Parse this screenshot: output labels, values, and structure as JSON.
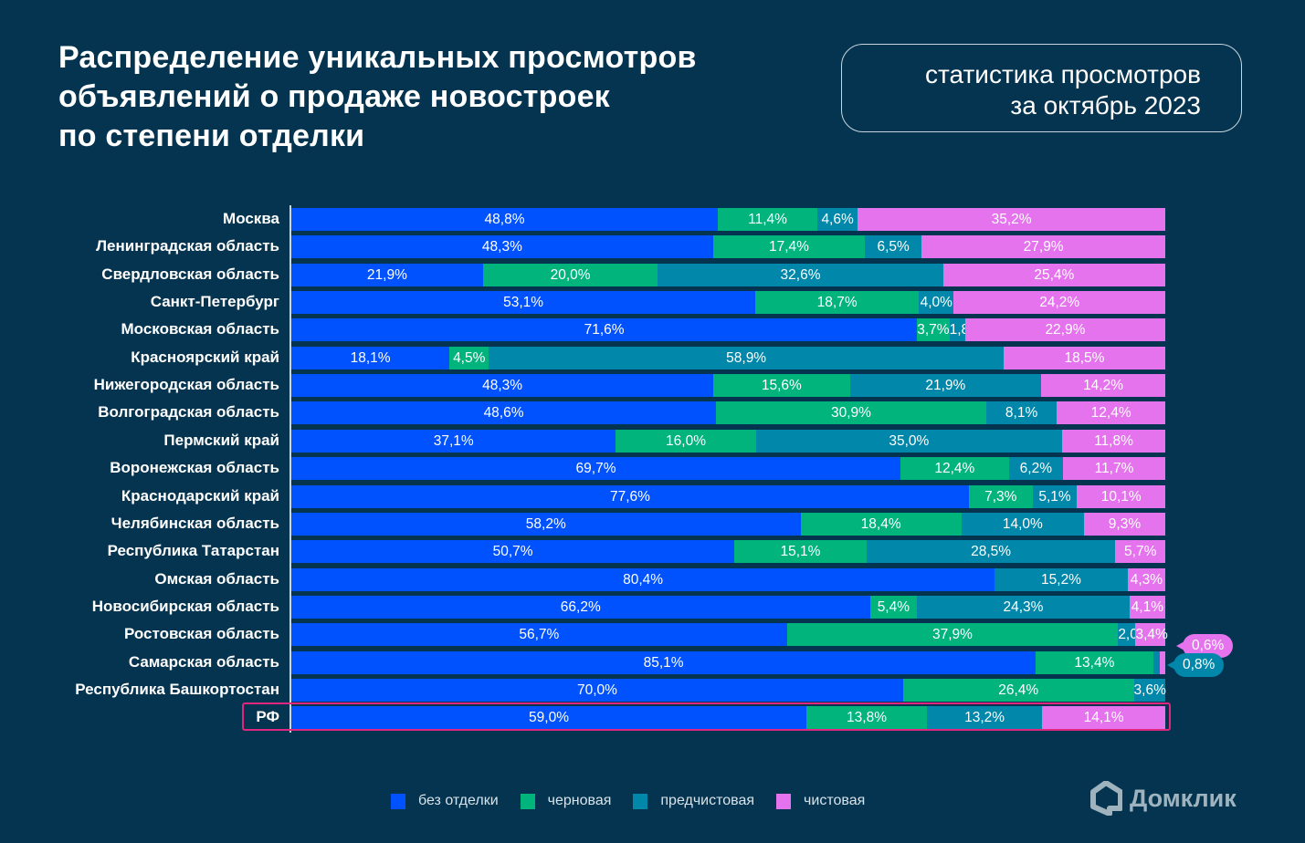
{
  "header": {
    "title": "Распределение уникальных просмотров\nобъявлений о продаже новостроек\nпо степени отделки",
    "period": "статистика просмотров\nза октябрь 2023"
  },
  "brand": {
    "name": "Домклик",
    "icon": "house-logo-icon"
  },
  "colors": {
    "background": "#04344f",
    "без отделки": "#0052fe",
    "черновая": "#00b47c",
    "предчистовая": "#0087a9",
    "чистовая": "#e573ed",
    "highlight": "#e0267f"
  },
  "chart_data": {
    "type": "bar",
    "orientation": "horizontal",
    "stacked": true,
    "normalized": true,
    "title": "Распределение уникальных просмотров объявлений о продаже новостроек по степени отделки",
    "subtitle": "статистика просмотров за октябрь 2023",
    "xlabel": "",
    "ylabel": "",
    "xlim": [
      0,
      100
    ],
    "unit": "%",
    "grid": false,
    "legend_position": "bottom",
    "categories": [
      "Москва",
      "Ленинградская область",
      "Свердловская область",
      "Санкт-Петербург",
      "Московская область",
      "Красноярский край",
      "Нижегородская область",
      "Волгоградская область",
      "Пермский край",
      "Воронежская область",
      "Краснодарский край",
      "Челябинская область",
      "Республика Татарстан",
      "Омская область",
      "Новосибирская область",
      "Ростовская область",
      "Самарская область",
      "Республика Башкортостан",
      "РФ"
    ],
    "highlighted_category": "РФ",
    "series": [
      {
        "name": "без отделки",
        "values": [
          48.8,
          48.3,
          21.9,
          53.1,
          71.6,
          18.1,
          48.3,
          48.6,
          37.1,
          69.7,
          77.6,
          58.2,
          50.7,
          80.4,
          66.2,
          56.7,
          85.1,
          70.0,
          59.0
        ]
      },
      {
        "name": "черновая",
        "values": [
          11.4,
          17.4,
          20.0,
          18.7,
          3.7,
          4.5,
          15.6,
          30.9,
          16.0,
          12.4,
          7.3,
          18.4,
          15.1,
          0,
          5.4,
          37.9,
          13.4,
          26.4,
          13.8
        ]
      },
      {
        "name": "предчистовая",
        "values": [
          4.6,
          6.5,
          32.6,
          4.0,
          1.8,
          58.9,
          21.9,
          8.1,
          35.0,
          6.2,
          5.1,
          14.0,
          28.5,
          15.2,
          24.3,
          2.0,
          0.8,
          3.6,
          13.2
        ]
      },
      {
        "name": "чистовая",
        "values": [
          35.2,
          27.9,
          25.4,
          24.2,
          22.9,
          18.5,
          14.2,
          12.4,
          11.8,
          11.7,
          10.1,
          9.3,
          5.7,
          4.3,
          4.1,
          3.4,
          0.6,
          0,
          14.1
        ]
      }
    ],
    "callouts": [
      {
        "category": "Самарская область",
        "series": "чистовая",
        "label": "0,6%"
      },
      {
        "category": "Самарская область",
        "series": "предчистовая",
        "label": "0,8%"
      }
    ]
  },
  "legend": [
    {
      "label": "без отделки"
    },
    {
      "label": "черновая"
    },
    {
      "label": "предчистовая"
    },
    {
      "label": "чистовая"
    }
  ]
}
